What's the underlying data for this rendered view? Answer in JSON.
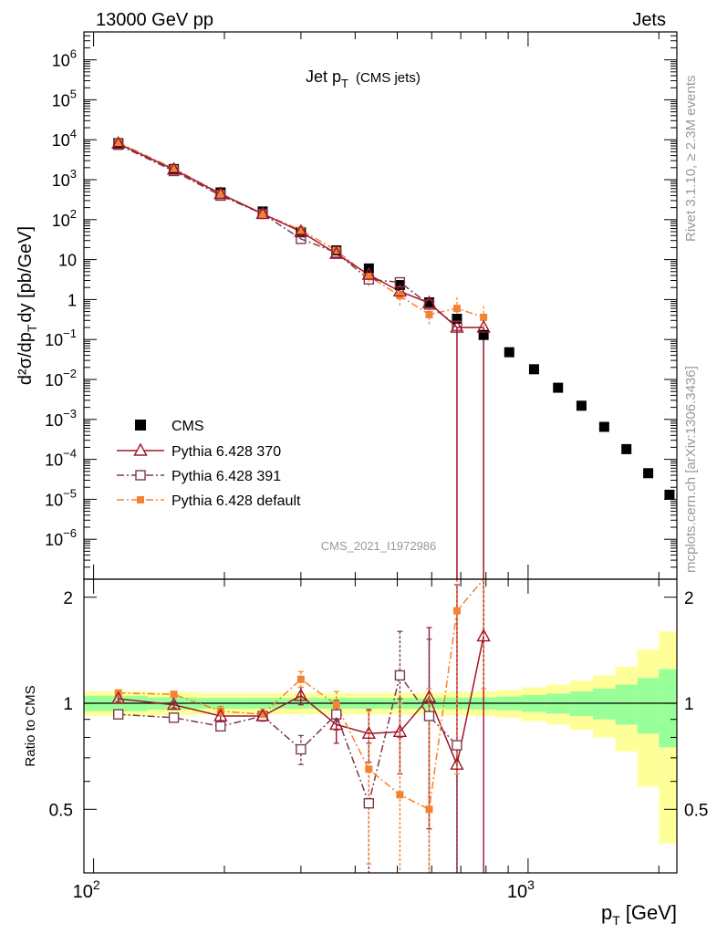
{
  "header": {
    "left": "13000 GeV pp",
    "right": "Jets"
  },
  "side_labels": {
    "rivet": "Rivet 3.1.10, ≥ 2.3M events",
    "mcplots": "mcplots.cern.ch [arXiv:1306.3436]"
  },
  "colors": {
    "cms": "#000000",
    "p370": "#a0142c",
    "p391": "#7a3a50",
    "pdef": "#f58230",
    "band_yellow": "#ffff99",
    "band_green": "#99ff99"
  },
  "chart_data": [
    {
      "type": "scatter",
      "title": "Jet p_T (CMS jets)",
      "title_main": "Jet p",
      "title_sub": "T",
      "title_extra": "(CMS jets)",
      "xscale": "log",
      "yscale": "log",
      "xlim": [
        95,
        2200
      ],
      "ylim": [
        1e-07,
        5000000.0
      ],
      "xlabel": "p_T [GeV]",
      "ylabel": "d²σ/dp_T dy [pb/GeV]",
      "ylabel_text": "d²σ/dp",
      "ylabel_sub": "T",
      "ylabel_tail": "dy [pb/GeV]",
      "y_ticks": [
        {
          "value": 1000000.0,
          "base": "10",
          "exp": "6"
        },
        {
          "value": 100000.0,
          "base": "10",
          "exp": "5"
        },
        {
          "value": 10000.0,
          "base": "10",
          "exp": "4"
        },
        {
          "value": 1000.0,
          "base": "10",
          "exp": "3"
        },
        {
          "value": 100.0,
          "base": "10",
          "exp": "2"
        },
        {
          "value": 10,
          "base": "10",
          "exp": ""
        },
        {
          "value": 1,
          "base": "1",
          "exp": ""
        },
        {
          "value": 0.1,
          "base": "10",
          "exp": "−1"
        },
        {
          "value": 0.01,
          "base": "10",
          "exp": "−2"
        },
        {
          "value": 0.001,
          "base": "10",
          "exp": "−3"
        },
        {
          "value": 0.0001,
          "base": "10",
          "exp": "−4"
        },
        {
          "value": 1e-05,
          "base": "10",
          "exp": "−5"
        },
        {
          "value": 1e-06,
          "base": "10",
          "exp": "−6"
        }
      ],
      "legend_position": "bottom-left",
      "series": [
        {
          "name": "CMS",
          "style": "square-filled",
          "x": [
            114,
            153,
            196,
            245,
            300,
            362,
            430,
            507,
            592,
            686,
            790,
            905,
            1032,
            1172,
            1327,
            1497,
            1684,
            1890,
            2116
          ],
          "y": [
            8200,
            1850,
            480,
            160,
            48,
            17,
            6,
            2.3,
            0.85,
            0.33,
            0.13,
            0.048,
            0.018,
            0.0062,
            0.0022,
            0.00065,
            0.00018,
            4.5e-05,
            1.3e-05
          ]
        },
        {
          "name": "Pythia 6.428 370",
          "style": "triangle-open",
          "x": [
            114,
            153,
            196,
            245,
            300,
            362,
            430,
            507,
            592,
            686,
            790
          ],
          "y": [
            8000,
            1800,
            440,
            140,
            50,
            14,
            4.2,
            1.6,
            0.82,
            0.2,
            0.2
          ],
          "err_lo": [
            0,
            0,
            0,
            0,
            0,
            0,
            0,
            0,
            0,
            0.19999,
            0.19999
          ]
        },
        {
          "name": "Pythia 6.428 391",
          "style": "square-open",
          "x": [
            114,
            153,
            196,
            245,
            300,
            362,
            430,
            507,
            592,
            686
          ],
          "y": [
            7500,
            1650,
            400,
            140,
            33,
            15,
            3.2,
            2.7,
            0.75,
            0.22
          ]
        },
        {
          "name": "Pythia 6.428 default",
          "style": "square-small",
          "x": [
            114,
            153,
            196,
            245,
            300,
            362,
            430,
            507,
            592,
            686,
            790
          ],
          "y": [
            8500,
            1900,
            450,
            140,
            55,
            17,
            3.8,
            1.25,
            0.42,
            0.6,
            0.36
          ]
        }
      ]
    },
    {
      "type": "scatter",
      "ylabel": "Ratio to CMS",
      "ylim": [
        0.33,
        2.25
      ],
      "y_ticks": [
        {
          "value": 0.5,
          "label": "0.5"
        },
        {
          "value": 1,
          "label": "1"
        },
        {
          "value": 2,
          "label": "2"
        }
      ],
      "x_ticks": [
        {
          "value": 100,
          "base": "10",
          "exp": "2"
        },
        {
          "value": 1000,
          "base": "10",
          "exp": "3"
        }
      ],
      "bands": {
        "edges": [
          95,
          133,
          173,
          220,
          272,
          330,
          395,
          468,
          548,
          638,
          737,
          846,
          967,
          1101,
          1248,
          1410,
          1588,
          1784,
          2000,
          2200
        ],
        "green": [
          0.05,
          0.04,
          0.035,
          0.035,
          0.035,
          0.035,
          0.035,
          0.035,
          0.035,
          0.038,
          0.04,
          0.045,
          0.055,
          0.065,
          0.08,
          0.1,
          0.13,
          0.18,
          0.25
        ],
        "yellow": [
          0.08,
          0.075,
          0.07,
          0.07,
          0.07,
          0.07,
          0.07,
          0.07,
          0.07,
          0.075,
          0.08,
          0.09,
          0.11,
          0.13,
          0.16,
          0.2,
          0.27,
          0.42,
          0.6
        ]
      },
      "series": [
        {
          "name": "Pythia 6.428 370",
          "x": [
            114,
            153,
            196,
            245,
            300,
            362,
            430,
            507,
            592,
            686,
            790
          ],
          "y": [
            1.03,
            0.99,
            0.92,
            0.92,
            1.05,
            0.87,
            0.82,
            0.83,
            1.04,
            0.67,
            1.55
          ],
          "err": [
            0.02,
            0.02,
            0.03,
            0.03,
            0.06,
            0.1,
            0.14,
            0.2,
            0.6,
            1.5,
            1.5
          ]
        },
        {
          "name": "Pythia 6.428 391",
          "x": [
            114,
            153,
            196,
            245,
            300,
            362,
            430,
            507,
            592,
            686
          ],
          "y": [
            0.93,
            0.91,
            0.86,
            0.92,
            0.74,
            0.93,
            0.52,
            1.2,
            0.92,
            0.76
          ],
          "err": [
            0.02,
            0.02,
            0.02,
            0.03,
            0.07,
            0.09,
            0.25,
            0.4,
            0.6,
            1.5
          ]
        },
        {
          "name": "Pythia 6.428 default",
          "x": [
            114,
            153,
            196,
            245,
            300,
            362,
            430,
            507,
            592,
            686,
            790
          ],
          "y": [
            1.07,
            1.06,
            0.95,
            0.93,
            1.17,
            0.99,
            0.65,
            0.55,
            0.5,
            1.83,
            2.3
          ],
          "err": [
            0.02,
            0.02,
            0.03,
            0.03,
            0.06,
            0.09,
            0.3,
            0.45,
            0.6,
            1.2,
            1.2
          ]
        }
      ]
    }
  ],
  "footer_label": "CMS_2021_I1972986"
}
